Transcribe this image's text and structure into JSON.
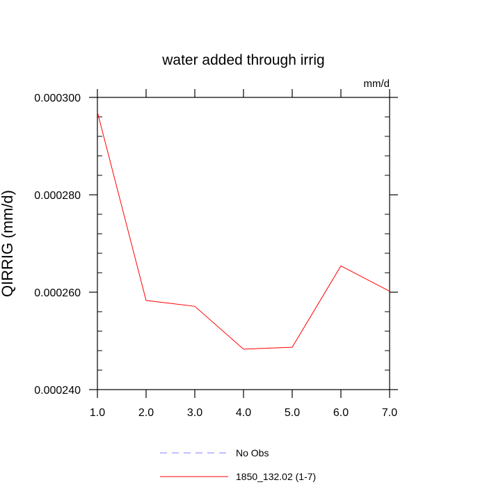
{
  "chart_data": {
    "type": "line",
    "title": "water added through irrig",
    "units": "mm/d",
    "xlabel": "",
    "ylabel": "QIRRIG  (mm/d)",
    "xlim": [
      1.0,
      7.0
    ],
    "ylim": [
      0.00024,
      0.0003
    ],
    "x_ticks": [
      1,
      2,
      3,
      4,
      5,
      6,
      7
    ],
    "x_tick_labels": [
      "1.0",
      "2.0",
      "3.0",
      "4.0",
      "5.0",
      "6.0",
      "7.0"
    ],
    "y_ticks": [
      0.00024,
      0.00026,
      0.00028,
      0.0003
    ],
    "y_tick_labels": [
      "0.000240",
      "0.000260",
      "0.000280",
      "0.000300"
    ],
    "grid": false,
    "legend_position": "bottom",
    "series": [
      {
        "name": "1850_132.02 (1-7)",
        "color": "#ff0000",
        "dash": "solid",
        "x": [
          1,
          2,
          3,
          4,
          5,
          6,
          7
        ],
        "values": [
          0.000297,
          0.0002583,
          0.0002571,
          0.0002483,
          0.0002487,
          0.0002654,
          0.0002602
        ]
      }
    ],
    "legend": [
      {
        "label": "No Obs",
        "color": "#8080ff",
        "dash": "dashed"
      },
      {
        "label": "1850_132.02 (1-7)",
        "color": "#ff0000",
        "dash": "solid"
      }
    ]
  }
}
